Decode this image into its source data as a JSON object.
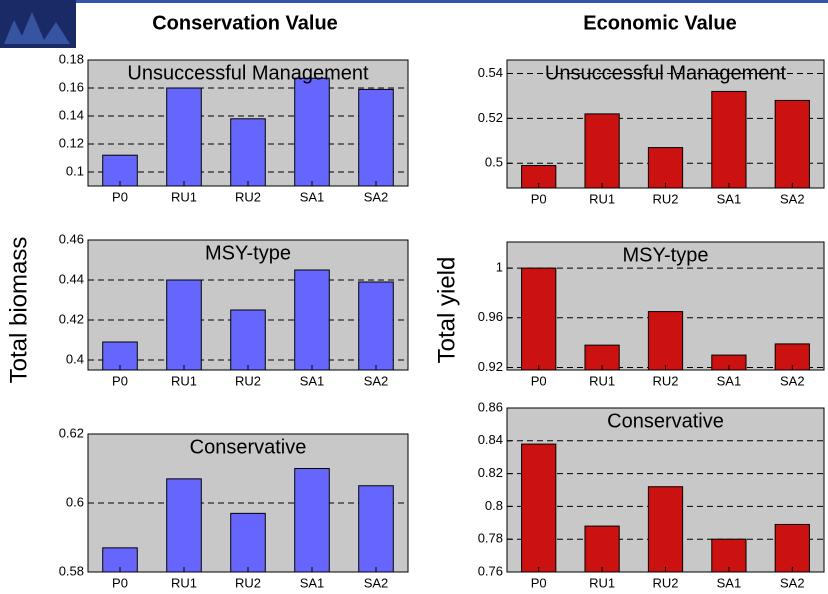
{
  "headers": [
    "Conservation Value",
    "Economic Value"
  ],
  "ylabels": [
    "Total biomass",
    "Total yield"
  ],
  "chart_data": [
    {
      "type": "bar",
      "title": "Unsuccessful Management",
      "categories": [
        "P0",
        "RU1",
        "RU2",
        "SA1",
        "SA2"
      ],
      "values": [
        0.112,
        0.16,
        0.138,
        0.167,
        0.159
      ],
      "color": "#6666ff",
      "ylim": [
        0.09,
        0.18
      ],
      "yticks": [
        0.1,
        0.12,
        0.14,
        0.16,
        0.18
      ],
      "grid": true
    },
    {
      "type": "bar",
      "title": "MSY-type",
      "categories": [
        "P0",
        "RU1",
        "RU2",
        "SA1",
        "SA2"
      ],
      "values": [
        0.409,
        0.44,
        0.425,
        0.445,
        0.439
      ],
      "color": "#6666ff",
      "ylim": [
        0.395,
        0.46
      ],
      "yticks": [
        0.4,
        0.42,
        0.44,
        0.46
      ],
      "grid": true
    },
    {
      "type": "bar",
      "title": "Conservative",
      "categories": [
        "P0",
        "RU1",
        "RU2",
        "SA1",
        "SA2"
      ],
      "values": [
        0.587,
        0.607,
        0.597,
        0.61,
        0.605
      ],
      "color": "#6666ff",
      "ylim": [
        0.58,
        0.62
      ],
      "yticks": [
        0.58,
        0.6,
        0.62
      ],
      "grid": true
    },
    {
      "type": "bar",
      "title": "Unsuccessful Management",
      "categories": [
        "P0",
        "RU1",
        "RU2",
        "SA1",
        "SA2"
      ],
      "values": [
        0.499,
        0.522,
        0.507,
        0.532,
        0.528
      ],
      "color": "#cc1111",
      "ylim": [
        0.489,
        0.546
      ],
      "yticks": [
        0.5,
        0.52,
        0.54
      ],
      "grid": true
    },
    {
      "type": "bar",
      "title": "MSY-type",
      "categories": [
        "P0",
        "RU1",
        "RU2",
        "SA1",
        "SA2"
      ],
      "values": [
        1.0,
        0.938,
        0.965,
        0.93,
        0.939
      ],
      "color": "#cc1111",
      "ylim": [
        0.918,
        1.021
      ],
      "yticks": [
        0.92,
        0.96,
        1
      ],
      "grid": true
    },
    {
      "type": "bar",
      "title": "Conservative",
      "categories": [
        "P0",
        "RU1",
        "RU2",
        "SA1",
        "SA2"
      ],
      "values": [
        0.838,
        0.788,
        0.812,
        0.78,
        0.789
      ],
      "color": "#cc1111",
      "ylim": [
        0.76,
        0.86
      ],
      "yticks": [
        0.76,
        0.78,
        0.8,
        0.82,
        0.84,
        0.86
      ],
      "grid": true
    }
  ]
}
